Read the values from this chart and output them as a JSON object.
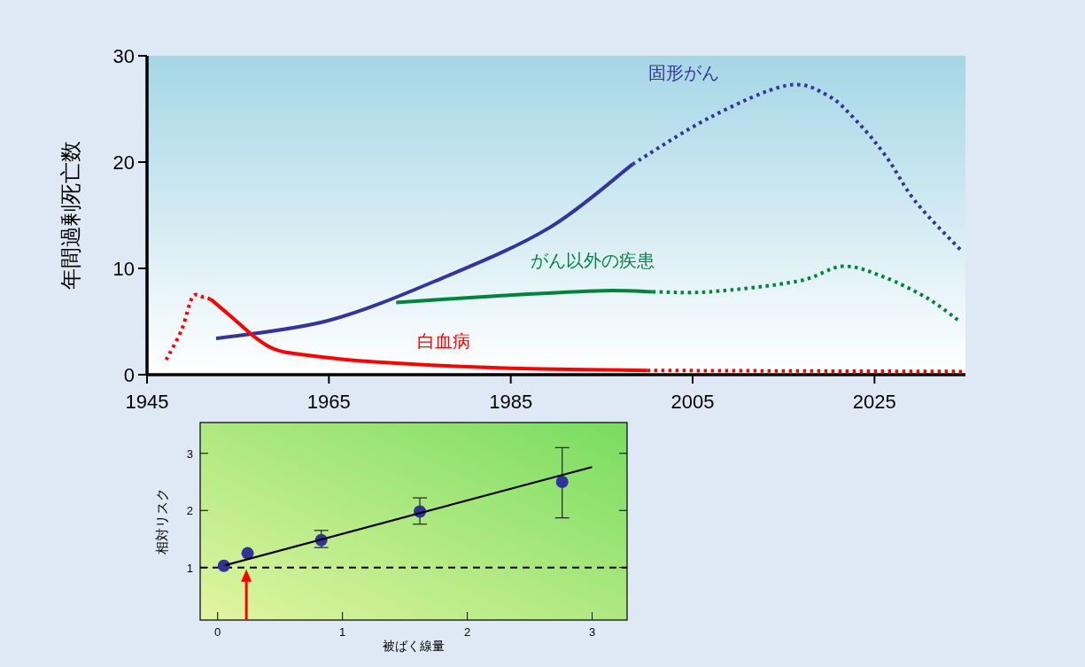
{
  "chart_data": [
    {
      "type": "line",
      "ylabel": "年間過剰死亡数",
      "xlim": [
        1945,
        2035
      ],
      "xticks": [
        1945,
        1965,
        1985,
        2005,
        2025
      ],
      "ylim": [
        0,
        30
      ],
      "yticks": [
        0,
        10,
        20,
        30
      ],
      "series": [
        {
          "name": "固形がん",
          "color": "#35349a",
          "line_style": "solid",
          "x": [
            1952.6,
            1965,
            1977.5,
            1989.2,
            1998.4
          ],
          "values": [
            3.4,
            5.1,
            9.1,
            13.8,
            19.8
          ]
        },
        {
          "color": "#35349a",
          "line_style": "dotted",
          "x": [
            1998.4,
            2006.9,
            2015.3,
            2019.8,
            2023.1,
            2026.3,
            2029.5,
            2034.5
          ],
          "values": [
            19.8,
            24.2,
            27.2,
            26.3,
            23.8,
            20.5,
            16.3,
            11.7
          ]
        },
        {
          "name": "がん以外の疾患",
          "color": "#00843d",
          "line_style": "solid",
          "x": [
            1972.4,
            1985.2,
            1995.1,
            2000.6
          ],
          "values": [
            6.8,
            7.5,
            7.9,
            7.8
          ]
        },
        {
          "color": "#00843d",
          "line_style": "dotted",
          "x": [
            2000.6,
            2006.9,
            2016.6,
            2021.5,
            2026,
            2030.8,
            2034.4
          ],
          "values": [
            7.8,
            7.8,
            8.8,
            10.2,
            9.2,
            7.2,
            5.0
          ]
        },
        {
          "name": "白血病",
          "color": "#ff0000",
          "line_style": "solid",
          "x": [
            1952,
            1954.2,
            1956.9,
            1959,
            1962,
            1970,
            1985,
            2000
          ],
          "values": [
            7.1,
            5.5,
            3.5,
            2.4,
            1.9,
            1.2,
            0.6,
            0.4
          ]
        },
        {
          "color": "#ff0000",
          "line_style": "dotted",
          "x": [
            1947.1,
            1948.8,
            1950,
            1951.2,
            1952
          ],
          "values": [
            1.4,
            4.2,
            7.3,
            7.3,
            7.1
          ]
        },
        {
          "color": "#ff0000",
          "line_style": "dotted",
          "x": [
            2000,
            2035
          ],
          "values": [
            0.4,
            0.3
          ]
        }
      ]
    },
    {
      "type": "scatter",
      "xlabel": "被ばく線量",
      "ylabel": "相対リスク",
      "xlim": [
        -0.14,
        3.28
      ],
      "xticks": [
        0,
        1,
        2,
        3
      ],
      "ylim": [
        0.08,
        3.54
      ],
      "yticks": [
        1,
        2,
        3
      ],
      "series": [
        {
          "marker": "circle",
          "color": "#303399",
          "x": [
            0.05,
            0.24,
            0.83,
            1.62,
            2.76
          ],
          "values": [
            1.03,
            1.25,
            1.48,
            1.98,
            2.5
          ],
          "errors": [
            null,
            null,
            [
              1.35,
              1.65
            ],
            [
              1.76,
              2.22
            ],
            [
              1.87,
              3.1
            ]
          ]
        },
        {
          "type": "line",
          "color": "#000000",
          "line_style": "solid",
          "x": [
            0.06,
            3.0
          ],
          "values": [
            1.04,
            2.76
          ]
        }
      ],
      "ref_lines": [
        {
          "axis": "y",
          "value": 1,
          "color": "#000000",
          "line_style": "dashed"
        },
        {
          "axis": "x",
          "value": 0.23,
          "color": "#ff0000",
          "line_style": "solid"
        }
      ]
    }
  ]
}
